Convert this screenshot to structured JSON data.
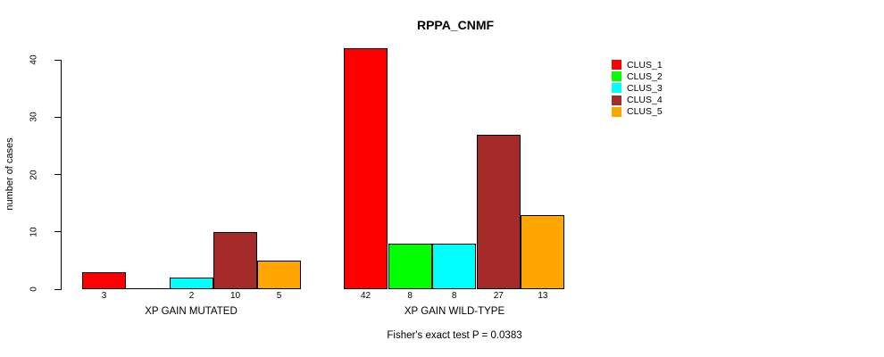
{
  "chart_data": {
    "type": "bar",
    "title": "RPPA_CNMF",
    "ylabel": "number of cases",
    "xlabel": "",
    "categories": [
      "XP GAIN MUTATED",
      "XP GAIN WILD-TYPE"
    ],
    "series": [
      {
        "name": "CLUS_1",
        "color": "#FF0000",
        "values": [
          3,
          42
        ]
      },
      {
        "name": "CLUS_2",
        "color": "#00FF00",
        "values": [
          0,
          8
        ]
      },
      {
        "name": "CLUS_3",
        "color": "#00FFFF",
        "values": [
          2,
          8
        ]
      },
      {
        "name": "CLUS_4",
        "color": "#A52A2A",
        "values": [
          10,
          27
        ]
      },
      {
        "name": "CLUS_5",
        "color": "#FFA500",
        "values": [
          5,
          13
        ]
      }
    ],
    "bar_value_labels": [
      [
        "3",
        "",
        "2",
        "10",
        "5"
      ],
      [
        "42",
        "8",
        "8",
        "27",
        "13"
      ]
    ],
    "yticks": [
      "0",
      "10",
      "20",
      "30",
      "40"
    ],
    "ylim": [
      0,
      42
    ],
    "grid": false,
    "legend_position": "top-right",
    "legend_entries": [
      "CLUS_1",
      "CLUS_2",
      "CLUS_3",
      "CLUS_4",
      "CLUS_5"
    ],
    "annotation": "Fisher's exact test P = 0.0383"
  }
}
